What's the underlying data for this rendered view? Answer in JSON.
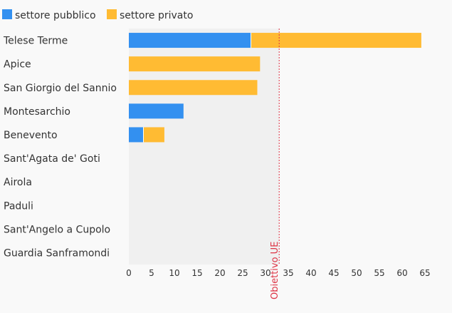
{
  "chart_data": {
    "type": "bar",
    "orientation": "horizontal",
    "stacked": true,
    "categories": [
      "Telese Terme",
      "Apice",
      "San Giorgio del Sannio",
      "Montesarchio",
      "Benevento",
      "Sant'Agata de' Goti",
      "Airola",
      "Paduli",
      "Sant'Angelo a Cupolo",
      "Guardia Sanframondi"
    ],
    "series": [
      {
        "name": "settore pubblico",
        "color": "#3390f0",
        "values": [
          26.8,
          0,
          0,
          12,
          3.2,
          0,
          0,
          0,
          0,
          0
        ]
      },
      {
        "name": "settore privato",
        "color": "#ffbb33",
        "values": [
          37.4,
          28.8,
          28.2,
          0,
          4.6,
          0,
          0,
          0,
          0,
          0
        ]
      }
    ],
    "xlim": [
      0,
      65
    ],
    "xticks": [
      0,
      5,
      10,
      15,
      20,
      25,
      30,
      35,
      40,
      45,
      50,
      55,
      60,
      65
    ],
    "reference_line": {
      "value": 33,
      "label": "Obiettivo UE",
      "color": "#dd3344"
    },
    "legend_position": "top-left",
    "grid": false
  }
}
